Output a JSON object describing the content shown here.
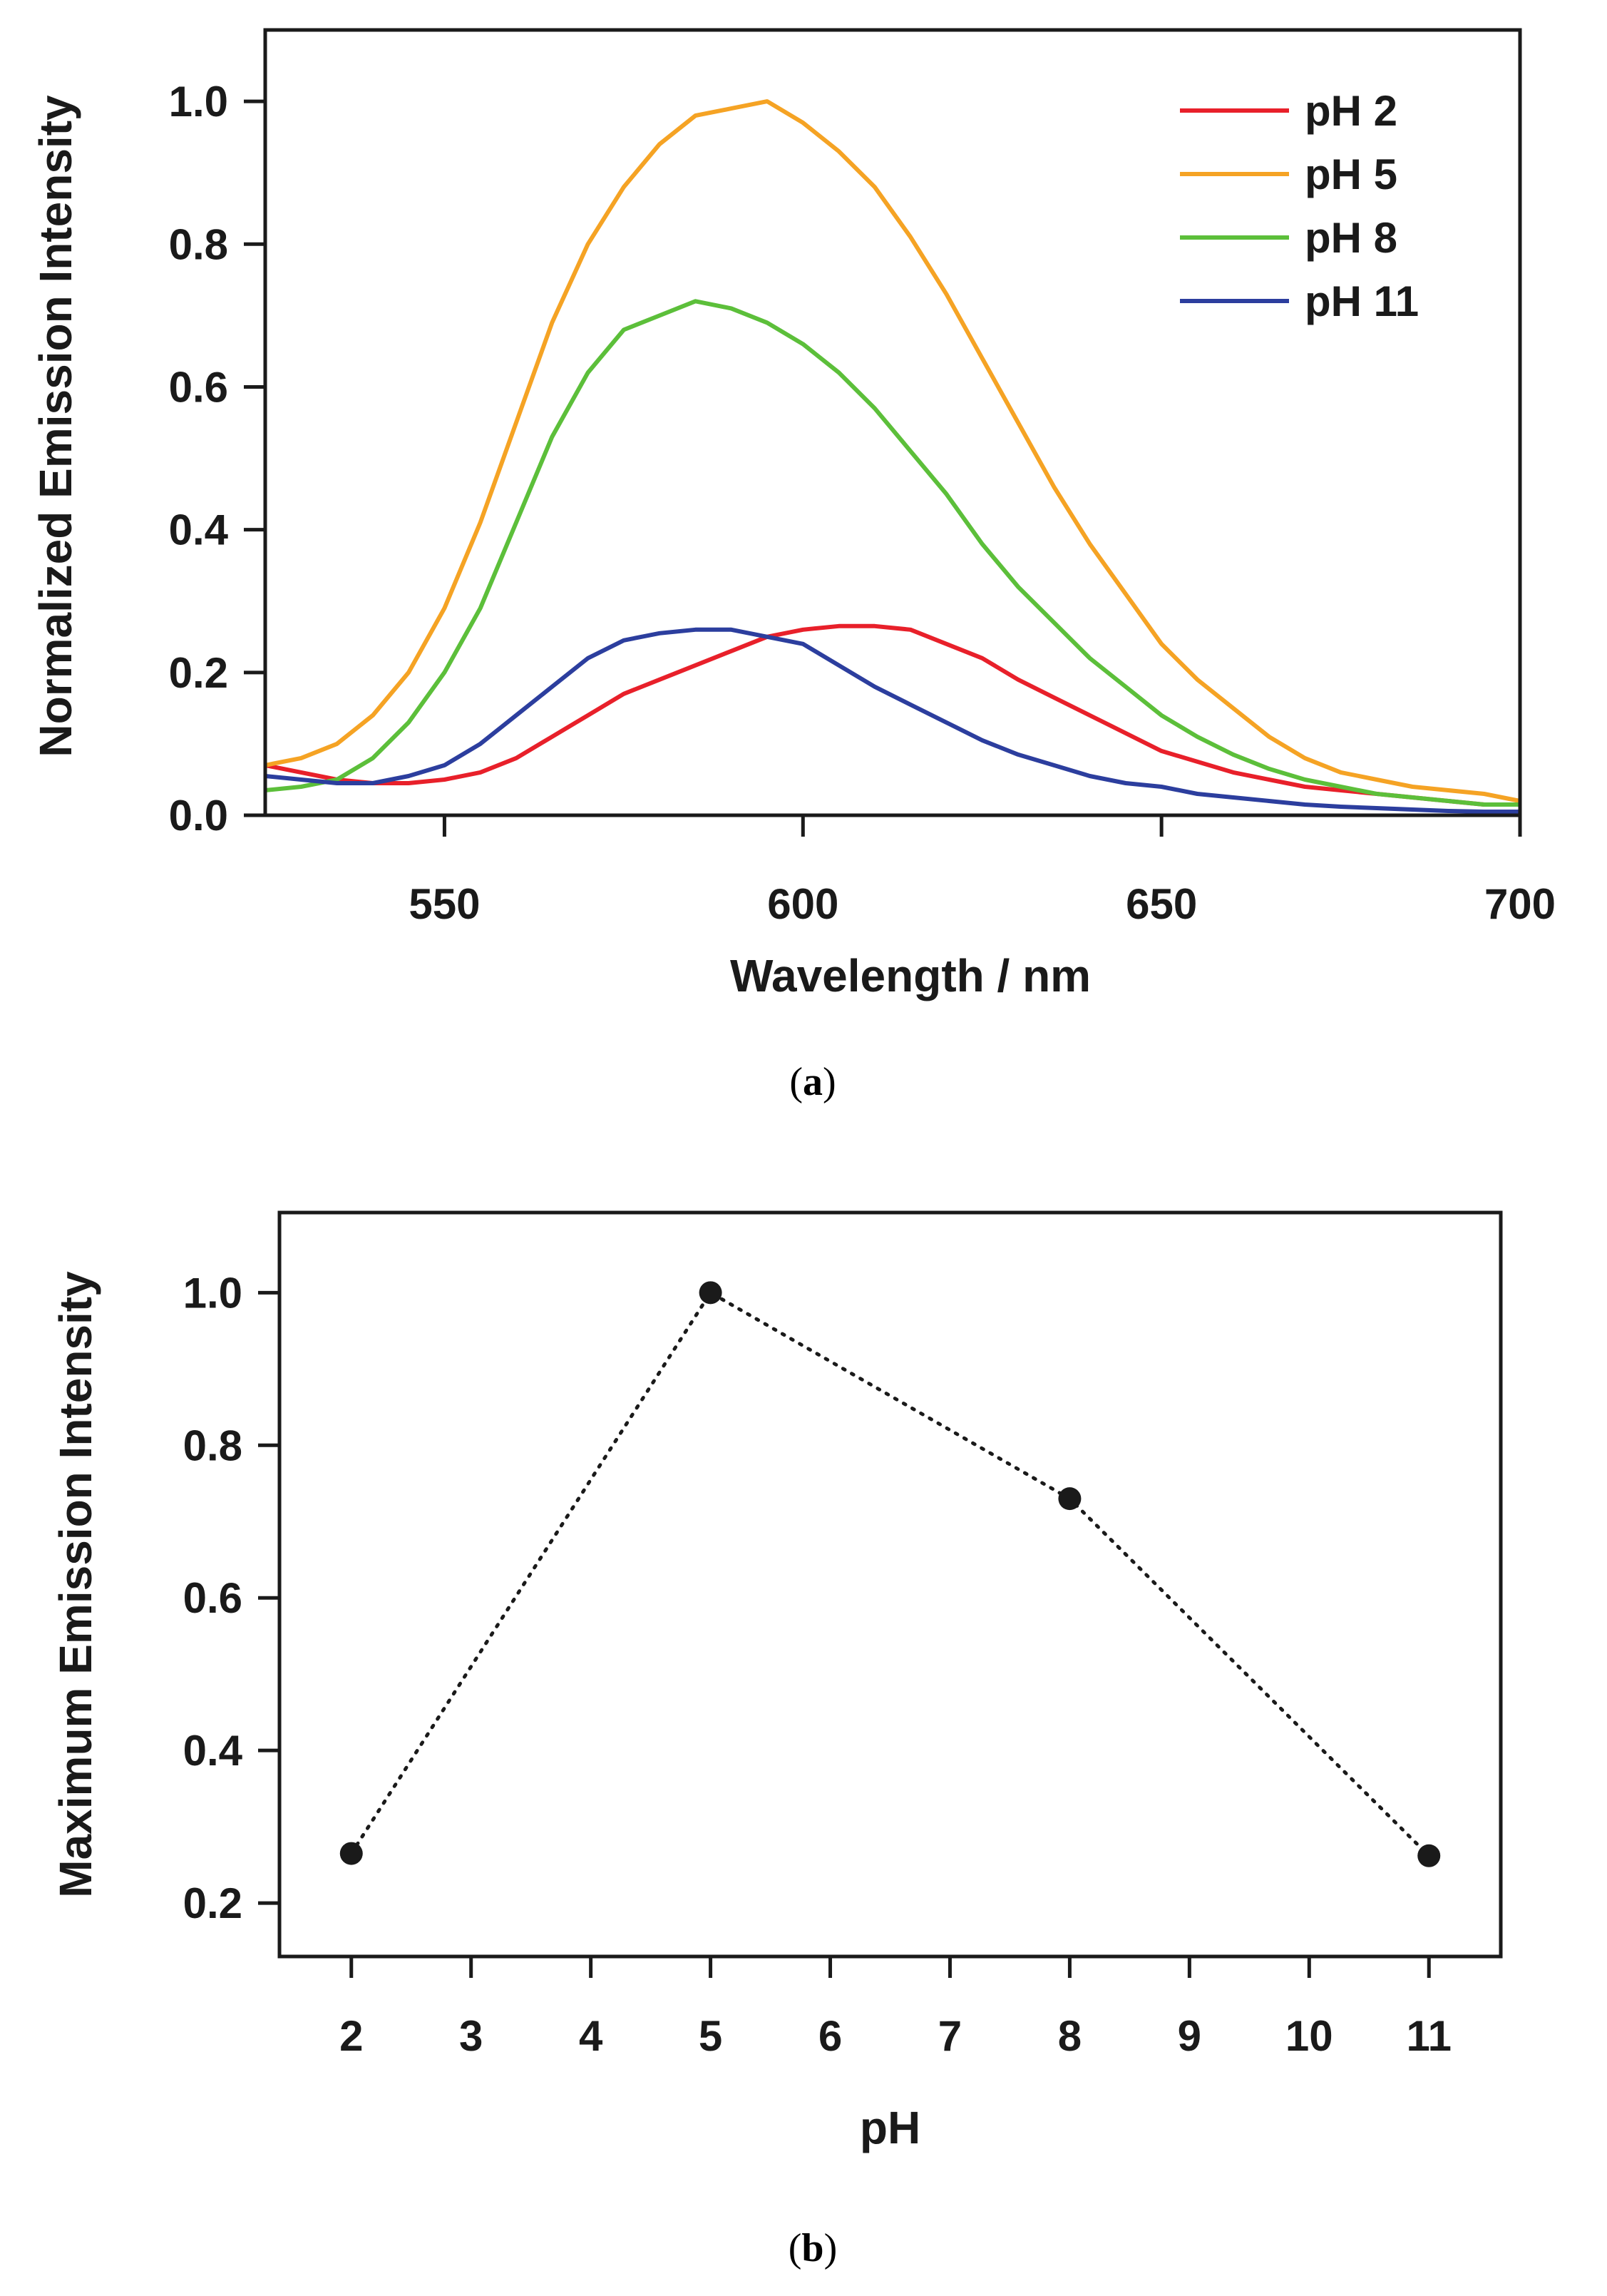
{
  "chart_data": [
    {
      "type": "line",
      "panel_caption": {
        "open": "(",
        "letter": "a",
        "close": ")"
      },
      "xlabel": "Wavelength / nm",
      "ylabel": "Normalized Emission Intensity",
      "xlim": [
        525,
        700
      ],
      "ylim": [
        0,
        1.1
      ],
      "xticks": [
        550,
        600,
        650,
        700
      ],
      "yticks": [
        0.0,
        0.2,
        0.4,
        0.6,
        0.8,
        1.0
      ],
      "ytick_labels": [
        "0.0",
        "0.2",
        "0.4",
        "0.6",
        "0.8",
        "1.0"
      ],
      "legend_position": "top-right",
      "grid": false,
      "series": [
        {
          "name": "pH 2",
          "color": "#e8202a",
          "x": [
            525,
            530,
            535,
            540,
            545,
            550,
            555,
            560,
            565,
            570,
            575,
            580,
            585,
            590,
            595,
            600,
            605,
            610,
            615,
            620,
            625,
            630,
            635,
            640,
            645,
            650,
            655,
            660,
            665,
            670,
            675,
            680,
            685,
            690,
            695,
            700
          ],
          "y": [
            0.07,
            0.06,
            0.05,
            0.045,
            0.045,
            0.05,
            0.06,
            0.08,
            0.11,
            0.14,
            0.17,
            0.19,
            0.21,
            0.23,
            0.25,
            0.26,
            0.265,
            0.265,
            0.26,
            0.24,
            0.22,
            0.19,
            0.165,
            0.14,
            0.115,
            0.09,
            0.075,
            0.06,
            0.05,
            0.04,
            0.035,
            0.03,
            0.025,
            0.02,
            0.015,
            0.015
          ]
        },
        {
          "name": "pH 5",
          "color": "#f5a324",
          "x": [
            525,
            530,
            535,
            540,
            545,
            550,
            555,
            560,
            565,
            570,
            575,
            580,
            585,
            590,
            595,
            600,
            605,
            610,
            615,
            620,
            625,
            630,
            635,
            640,
            645,
            650,
            655,
            660,
            665,
            670,
            675,
            680,
            685,
            690,
            695,
            700
          ],
          "y": [
            0.07,
            0.08,
            0.1,
            0.14,
            0.2,
            0.29,
            0.41,
            0.55,
            0.69,
            0.8,
            0.88,
            0.94,
            0.98,
            0.99,
            1.0,
            0.97,
            0.93,
            0.88,
            0.81,
            0.73,
            0.64,
            0.55,
            0.46,
            0.38,
            0.31,
            0.24,
            0.19,
            0.15,
            0.11,
            0.08,
            0.06,
            0.05,
            0.04,
            0.035,
            0.03,
            0.02
          ]
        },
        {
          "name": "pH 8",
          "color": "#5cbf3a",
          "x": [
            525,
            530,
            535,
            540,
            545,
            550,
            555,
            560,
            565,
            570,
            575,
            580,
            585,
            590,
            595,
            600,
            605,
            610,
            615,
            620,
            625,
            630,
            635,
            640,
            645,
            650,
            655,
            660,
            665,
            670,
            675,
            680,
            685,
            690,
            695,
            700
          ],
          "y": [
            0.035,
            0.04,
            0.05,
            0.08,
            0.13,
            0.2,
            0.29,
            0.41,
            0.53,
            0.62,
            0.68,
            0.7,
            0.72,
            0.71,
            0.69,
            0.66,
            0.62,
            0.57,
            0.51,
            0.45,
            0.38,
            0.32,
            0.27,
            0.22,
            0.18,
            0.14,
            0.11,
            0.085,
            0.065,
            0.05,
            0.04,
            0.03,
            0.025,
            0.02,
            0.015,
            0.015
          ]
        },
        {
          "name": "pH 11",
          "color": "#2c3e9e",
          "x": [
            525,
            530,
            535,
            540,
            545,
            550,
            555,
            560,
            565,
            570,
            575,
            580,
            585,
            590,
            595,
            600,
            605,
            610,
            615,
            620,
            625,
            630,
            635,
            640,
            645,
            650,
            655,
            660,
            665,
            670,
            675,
            680,
            685,
            690,
            695,
            700
          ],
          "y": [
            0.055,
            0.05,
            0.045,
            0.045,
            0.055,
            0.07,
            0.1,
            0.14,
            0.18,
            0.22,
            0.245,
            0.255,
            0.26,
            0.26,
            0.25,
            0.24,
            0.21,
            0.18,
            0.155,
            0.13,
            0.105,
            0.085,
            0.07,
            0.055,
            0.045,
            0.04,
            0.03,
            0.025,
            0.02,
            0.015,
            0.012,
            0.01,
            0.008,
            0.006,
            0.005,
            0.005
          ]
        }
      ]
    },
    {
      "type": "scatter",
      "panel_caption": {
        "open": "(",
        "letter": "b",
        "close": ")"
      },
      "xlabel": "pH",
      "ylabel": "Maximum Emission Intensity",
      "xlim": [
        1.4,
        11.6
      ],
      "ylim": [
        0.13,
        1.105
      ],
      "xticks": [
        2,
        3,
        4,
        5,
        6,
        7,
        8,
        9,
        10,
        11
      ],
      "yticks": [
        0.2,
        0.4,
        0.6,
        0.8,
        1.0
      ],
      "ytick_labels": [
        "0.2",
        "0.4",
        "0.6",
        "0.8",
        "1.0"
      ],
      "grid": false,
      "connector": "dotted",
      "marker_color": "#1a1a1a",
      "x": [
        2,
        5,
        8,
        11
      ],
      "y": [
        0.265,
        1.0,
        0.73,
        0.262
      ]
    }
  ]
}
